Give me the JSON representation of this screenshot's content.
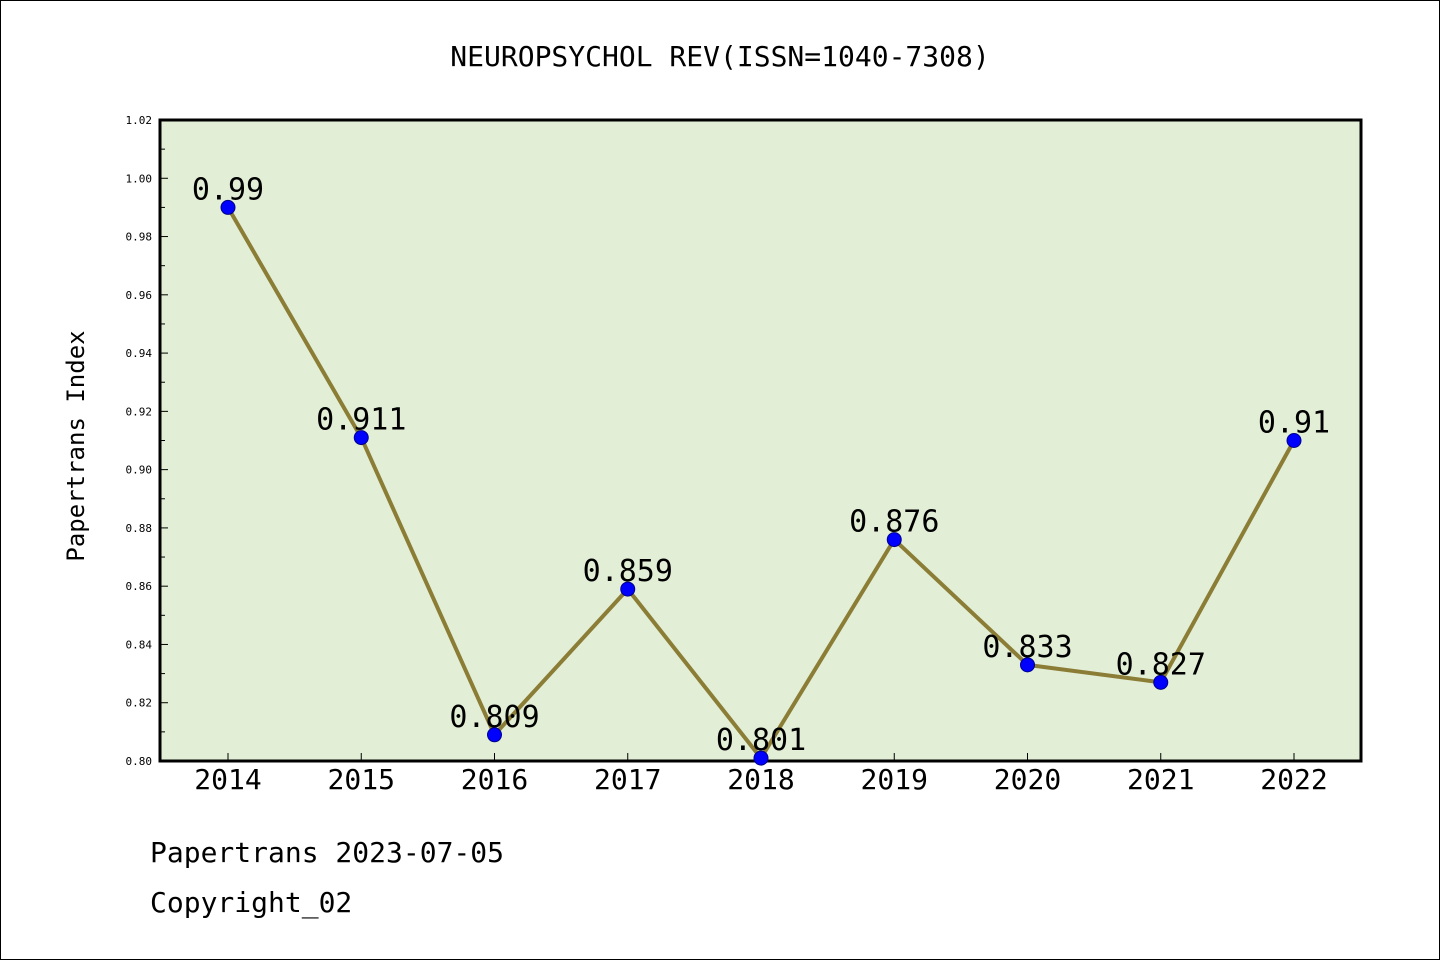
{
  "chart_data": {
    "type": "line",
    "title": "NEUROPSYCHOL REV(ISSN=1040-7308)",
    "xlabel": "",
    "ylabel": "Papertrans Index",
    "categories": [
      "2014",
      "2015",
      "2016",
      "2017",
      "2018",
      "2019",
      "2020",
      "2021",
      "2022"
    ],
    "series": [
      {
        "values": [
          0.99,
          0.911,
          0.809,
          0.859,
          0.801,
          0.876,
          0.833,
          0.827,
          0.91
        ],
        "labels": [
          "0.99",
          "0.911",
          "0.809",
          "0.859",
          "0.801",
          "0.876",
          "0.833",
          "0.827",
          "0.91"
        ]
      }
    ],
    "ylim": [
      0.8,
      1.02
    ],
    "yticks": [
      "0.80",
      "0.82",
      "0.84",
      "0.86",
      "0.88",
      "0.90",
      "0.92",
      "0.94",
      "0.96",
      "0.98",
      "1.00",
      "1.02"
    ],
    "grid": false,
    "legend": "none",
    "colors": {
      "plot_background": "#e2efd6",
      "line": "#8b7d35",
      "marker": "#0000ff",
      "marker_edge": "#00008b",
      "axis": "#000000"
    }
  },
  "footer": {
    "date_line": "Papertrans 2023-07-05",
    "copyright_line": "Copyright_02"
  }
}
